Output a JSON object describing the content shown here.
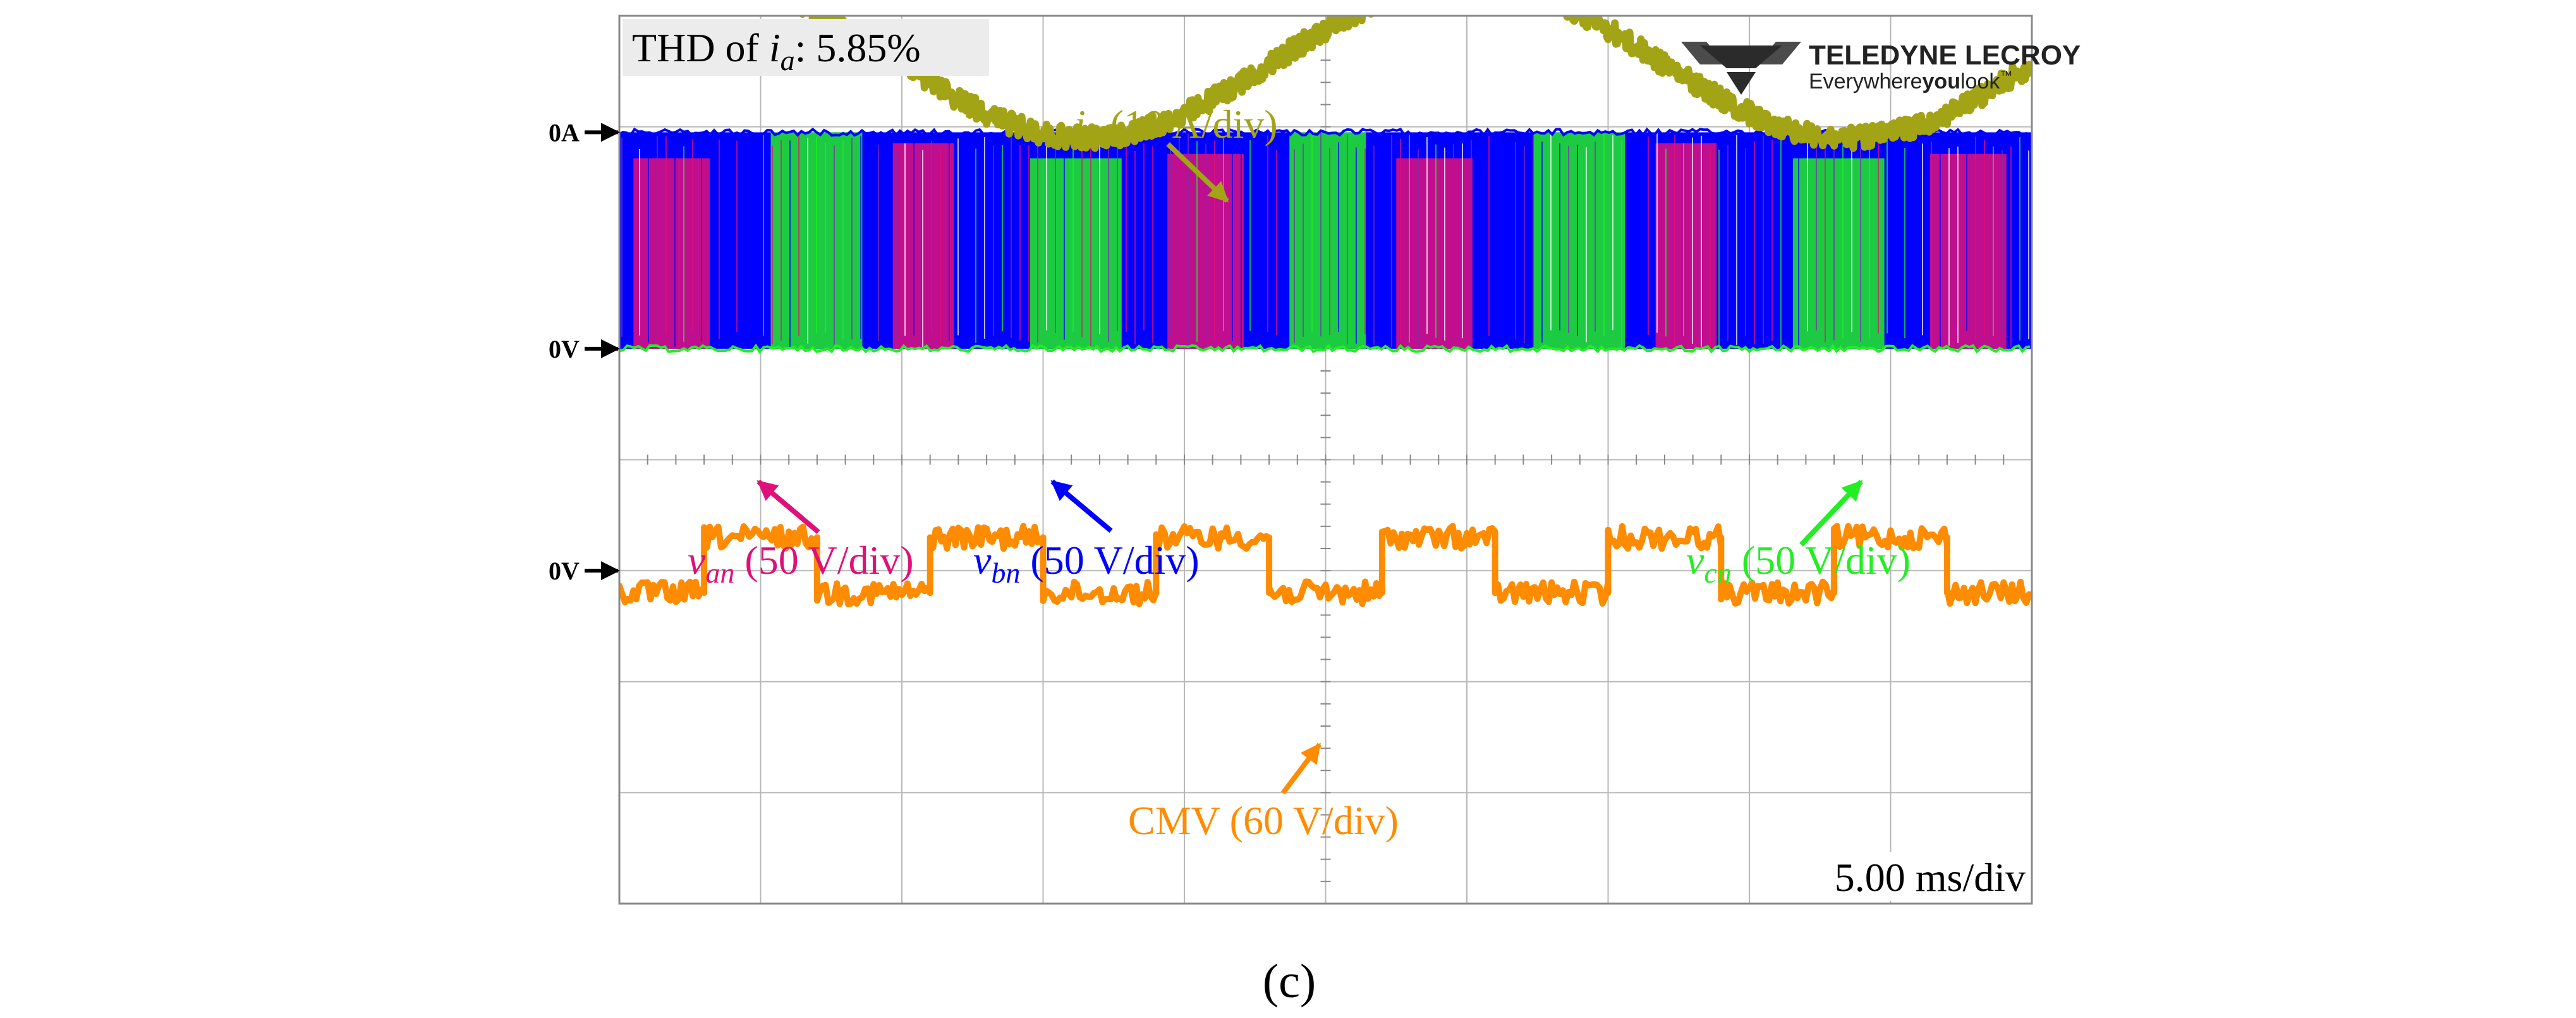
{
  "chart_data": {
    "type": "line",
    "title": "",
    "time_scale": "5.00 ms/div",
    "divisions": {
      "horizontal": 10,
      "vertical": 8
    },
    "grid": true,
    "thd_label": {
      "prefix": "THD of ",
      "symbol": "i",
      "sub": "a",
      "suffix": ": 5.85%"
    },
    "brand": {
      "name": "TELEDYNE LECROY",
      "tagline_a": "Everywhere",
      "tagline_b": "you",
      "tagline_c": "look",
      "tm": "™"
    },
    "reference_markers": [
      {
        "label": "0A",
        "level_div": 2.95
      },
      {
        "label": "0V",
        "level_div": 1.0
      },
      {
        "label": "0V",
        "level_div": -1.0
      }
    ],
    "series": [
      {
        "name": "i_a",
        "label_symbol": "i",
        "label_sub": "a",
        "label_scale": " (10 A/div)",
        "color": "#a3a316",
        "kind": "sine",
        "period_div": 5.4,
        "peak_time_div": 0.6,
        "offset_div": 3.6,
        "amplitude_div": 0.7
      },
      {
        "name": "v_an",
        "label_symbol": "v",
        "label_sub": "an",
        "label_scale": " (50 V/div)",
        "color": "#e0107a",
        "kind": "pwm",
        "low_div": 1.0,
        "high_div": 2.95
      },
      {
        "name": "v_bn",
        "label_symbol": "v",
        "label_sub": "bn",
        "label_scale": " (50 V/div)",
        "color": "#0000ff",
        "kind": "pwm",
        "low_div": 1.0,
        "high_div": 2.95
      },
      {
        "name": "v_cn",
        "label_symbol": "v",
        "label_sub": "cn",
        "label_scale": " (50 V/div)",
        "color": "#22ee22",
        "kind": "pwm",
        "low_div": 1.0,
        "high_div": 2.95
      },
      {
        "name": "CMV",
        "label_text": "CMV (60 V/div)",
        "color": "#ff8c00",
        "kind": "square",
        "period_div": 1.6,
        "first_high_start_div": 0.6,
        "duty": 0.5,
        "high_div": -0.7,
        "low_div": -1.2
      }
    ],
    "subfigure_label": "(c)"
  },
  "colors": {
    "grid": "#b8b8b8",
    "frame": "#888888",
    "thd_box": "#ececec",
    "ia": "#a3a316",
    "van": "#e0107a",
    "vbn": "#0000ff",
    "vcn": "#22ee22",
    "cmv": "#ff8c00"
  }
}
